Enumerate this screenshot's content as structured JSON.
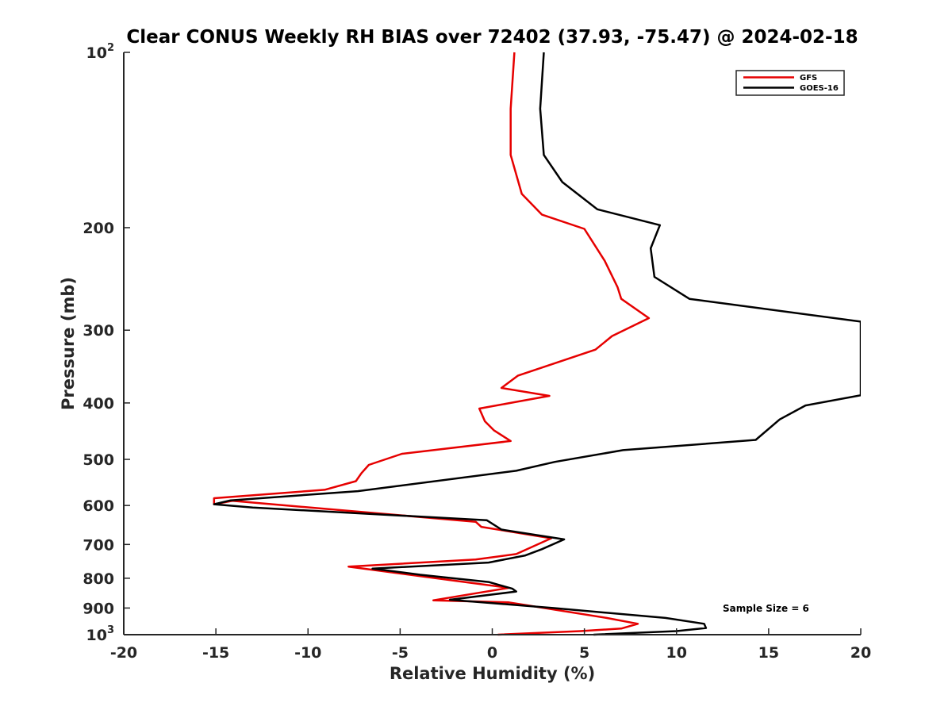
{
  "chart_data": {
    "type": "line",
    "title": "Clear CONUS Weekly RH BIAS over 72402 (37.93, -75.47) @ 2024-02-18",
    "xlabel": "Relative Humidity (%)",
    "ylabel": "Pressure (mb)",
    "xlim": [
      -20,
      20
    ],
    "ylim": [
      100,
      1000
    ],
    "yscale": "log",
    "y_reversed": true,
    "x_ticks": [
      -20,
      -15,
      -10,
      -5,
      0,
      5,
      10,
      15,
      20
    ],
    "x_tick_labels": [
      "-20",
      "-15",
      "-10",
      "-5",
      "0",
      "5",
      "10",
      "15",
      "20"
    ],
    "y_ticks": [
      100,
      200,
      300,
      400,
      500,
      600,
      700,
      800,
      900,
      1000
    ],
    "y_tick_labels": [
      {
        "base": "10",
        "exp": "2"
      },
      {
        "base": "200",
        "exp": ""
      },
      {
        "base": "300",
        "exp": ""
      },
      {
        "base": "400",
        "exp": ""
      },
      {
        "base": "500",
        "exp": ""
      },
      {
        "base": "600",
        "exp": ""
      },
      {
        "base": "700",
        "exp": ""
      },
      {
        "base": "800",
        "exp": ""
      },
      {
        "base": "900",
        "exp": ""
      },
      {
        "base": "10",
        "exp": "3"
      }
    ],
    "grid": false,
    "legend_position": "top-right",
    "annotation": "Sample Size = 6",
    "series": [
      {
        "name": "GFS",
        "color": "#e60000",
        "points": [
          [
            1.2,
            100
          ],
          [
            1.0,
            125
          ],
          [
            1.0,
            150
          ],
          [
            1.6,
            175
          ],
          [
            2.7,
            190
          ],
          [
            5.0,
            201
          ],
          [
            6.1,
            228
          ],
          [
            6.8,
            253
          ],
          [
            7.0,
            265
          ],
          [
            8.5,
            286
          ],
          [
            6.5,
            307
          ],
          [
            5.6,
            324
          ],
          [
            1.4,
            359
          ],
          [
            0.5,
            377
          ],
          [
            3.1,
            389
          ],
          [
            -0.7,
            409
          ],
          [
            -0.4,
            430
          ],
          [
            0.1,
            446
          ],
          [
            1.0,
            465
          ],
          [
            -4.9,
            489
          ],
          [
            -6.7,
            511
          ],
          [
            -7.1,
            528
          ],
          [
            -7.4,
            545
          ],
          [
            -9.1,
            564
          ],
          [
            -15.1,
            583
          ],
          [
            -15.1,
            597
          ],
          [
            -14.1,
            589
          ],
          [
            -0.9,
            640
          ],
          [
            -0.6,
            653
          ],
          [
            3.2,
            683
          ],
          [
            1.3,
            727
          ],
          [
            -0.9,
            743
          ],
          [
            -7.8,
            764
          ],
          [
            -1.5,
            812
          ],
          [
            0.9,
            831
          ],
          [
            -3.2,
            873
          ],
          [
            0.9,
            880
          ],
          [
            6.2,
            936
          ],
          [
            7.9,
            958
          ],
          [
            7.0,
            976
          ],
          [
            4.8,
            986
          ],
          [
            0.3,
            1000
          ]
        ]
      },
      {
        "name": "GOES-16",
        "color": "#000000",
        "points": [
          [
            2.8,
            100
          ],
          [
            2.6,
            125
          ],
          [
            2.8,
            150
          ],
          [
            3.8,
            167
          ],
          [
            5.7,
            186
          ],
          [
            9.1,
            198
          ],
          [
            8.6,
            217
          ],
          [
            8.8,
            243
          ],
          [
            10.7,
            265
          ],
          [
            20.0,
            290
          ],
          [
            20.0,
            388
          ],
          [
            17.0,
            404
          ],
          [
            15.6,
            427
          ],
          [
            14.3,
            463
          ],
          [
            7.1,
            482
          ],
          [
            3.4,
            505
          ],
          [
            1.3,
            523
          ],
          [
            -7.3,
            567
          ],
          [
            -14.2,
            588
          ],
          [
            -15.1,
            597
          ],
          [
            -13.0,
            605
          ],
          [
            -0.3,
            636
          ],
          [
            0.5,
            660
          ],
          [
            3.9,
            686
          ],
          [
            2.7,
            713
          ],
          [
            1.8,
            731
          ],
          [
            -0.2,
            752
          ],
          [
            -6.5,
            770
          ],
          [
            -3.9,
            789
          ],
          [
            -0.2,
            812
          ],
          [
            1.1,
            834
          ],
          [
            1.3,
            843
          ],
          [
            -2.3,
            871
          ],
          [
            3.3,
            900
          ],
          [
            9.4,
            936
          ],
          [
            11.5,
            958
          ],
          [
            11.6,
            974
          ],
          [
            10.0,
            986
          ],
          [
            5.5,
            1000
          ]
        ]
      }
    ]
  }
}
